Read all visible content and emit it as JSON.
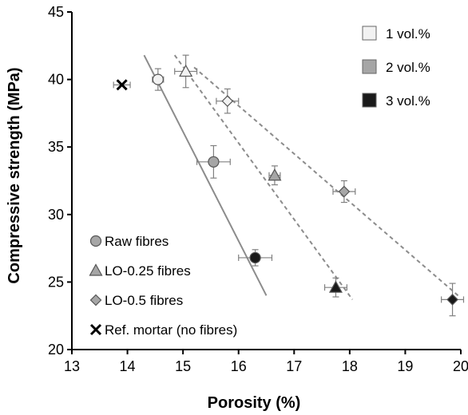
{
  "chart_data": {
    "type": "scatter",
    "xlabel": "Porosity (%)",
    "ylabel": "Compressive strength (MPa)",
    "xlim": [
      13,
      20
    ],
    "ylim": [
      20,
      45
    ],
    "xticks": [
      "13",
      "14",
      "15",
      "16",
      "17",
      "18",
      "19",
      "20"
    ],
    "yticks": [
      "20",
      "25",
      "30",
      "35",
      "40",
      "45"
    ],
    "colors": {
      "1 vol.%": "#f2f2f2",
      "2 vol.%": "#a6a6a6",
      "3 vol.%": "#1a1a1a",
      "raw_line": "#8c8c8c",
      "lo_line": "#8c8c8c",
      "error_bar": "#808080"
    },
    "fill_legend": [
      {
        "label": "1 vol.%",
        "key": "1 vol.%"
      },
      {
        "label": "2 vol.%",
        "key": "2 vol.%"
      },
      {
        "label": "3 vol.%",
        "key": "3 vol.%"
      }
    ],
    "marker_legend": [
      {
        "label": "Raw fibres",
        "marker": "circle"
      },
      {
        "label": "LO-0.25 fibres",
        "marker": "triangle"
      },
      {
        "label": "LO-0.5 fibres",
        "marker": "diamond"
      },
      {
        "label": "Ref. mortar (no fibres)",
        "marker": "cross"
      }
    ],
    "series": [
      {
        "name": "Raw fibres",
        "marker": "circle",
        "points": [
          {
            "x": 14.55,
            "y": 40.0,
            "xerr": 0.1,
            "yerr": 0.8,
            "fill": "1 vol.%"
          },
          {
            "x": 15.55,
            "y": 33.9,
            "xerr": 0.3,
            "yerr": 1.2,
            "fill": "2 vol.%"
          },
          {
            "x": 16.3,
            "y": 26.8,
            "xerr": 0.3,
            "yerr": 0.6,
            "fill": "3 vol.%"
          }
        ]
      },
      {
        "name": "LO-0.25 fibres",
        "marker": "triangle",
        "points": [
          {
            "x": 15.05,
            "y": 40.6,
            "xerr": 0.2,
            "yerr": 1.2,
            "fill": "1 vol.%"
          },
          {
            "x": 16.65,
            "y": 32.9,
            "xerr": 0.1,
            "yerr": 0.7,
            "fill": "2 vol.%"
          },
          {
            "x": 17.75,
            "y": 24.6,
            "xerr": 0.2,
            "yerr": 0.7,
            "fill": "3 vol.%"
          }
        ]
      },
      {
        "name": "LO-0.5 fibres",
        "marker": "diamond",
        "points": [
          {
            "x": 15.8,
            "y": 38.4,
            "xerr": 0.2,
            "yerr": 0.9,
            "fill": "1 vol.%"
          },
          {
            "x": 17.9,
            "y": 31.7,
            "xerr": 0.2,
            "yerr": 0.8,
            "fill": "2 vol.%"
          },
          {
            "x": 19.85,
            "y": 23.7,
            "xerr": 0.2,
            "yerr": 1.2,
            "fill": "3 vol.%"
          }
        ]
      },
      {
        "name": "Ref. mortar (no fibres)",
        "marker": "cross",
        "points": [
          {
            "x": 13.9,
            "y": 39.6,
            "xerr": 0.15,
            "yerr": 0,
            "fill": "none"
          }
        ]
      }
    ],
    "trendlines": [
      {
        "series": "Raw fibres",
        "style": "solid",
        "x0": 14.3,
        "y0": 41.8,
        "x1": 16.5,
        "y1": 24.0
      },
      {
        "series": "LO-0.25 fibres",
        "style": "dashed",
        "x0": 14.85,
        "y0": 41.8,
        "x1": 18.05,
        "y1": 23.7
      },
      {
        "series": "LO-0.5 fibres",
        "style": "dashed",
        "x0": 15.2,
        "y0": 40.9,
        "x1": 19.95,
        "y1": 24.0
      }
    ]
  }
}
